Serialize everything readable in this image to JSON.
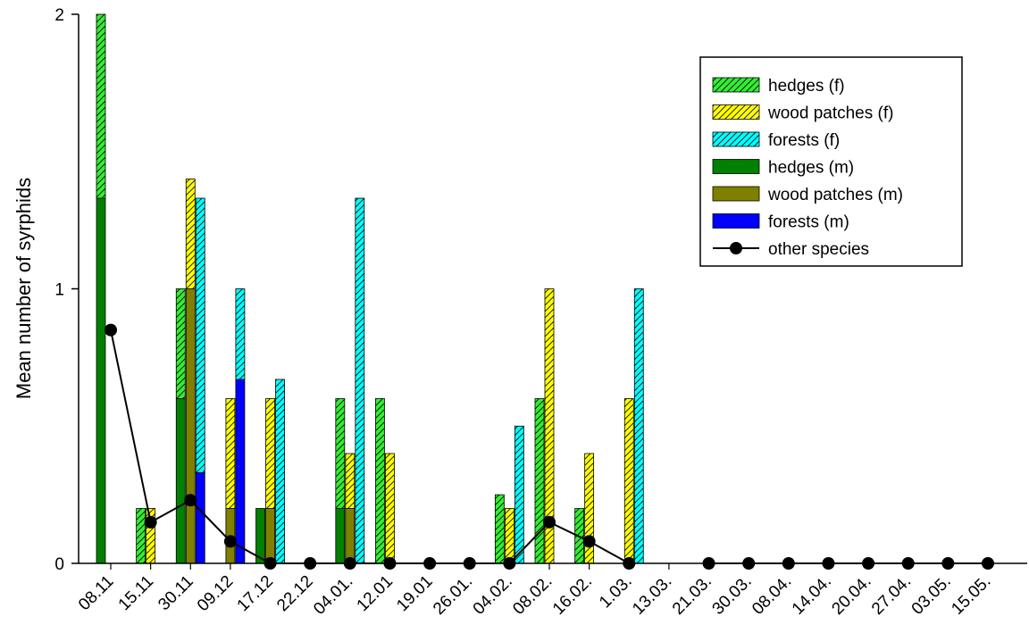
{
  "chart_data": {
    "type": "bar",
    "title": "",
    "xlabel": "",
    "ylabel": "Mean number of syrphids",
    "ylim": [
      0,
      2
    ],
    "yticks": [
      0,
      1,
      2
    ],
    "categories": [
      "08.11",
      "15.11",
      "30.11",
      "09.12",
      "17.12",
      "22.12",
      "04.01.",
      "12.01",
      "19.01",
      "26.01.",
      "04.02.",
      "08.02.",
      "16.02.",
      "1.03.",
      "13.03.",
      "21.03.",
      "30.03.",
      "08.04.",
      "14.04.",
      "20.04.",
      "27.04.",
      "03.05.",
      "15.05."
    ],
    "stacked_groups": [
      {
        "habitat": "hedges",
        "female_series": "hedges (f)",
        "male_series": "hedges (m)"
      },
      {
        "habitat": "wood patches",
        "female_series": "wood patches (f)",
        "male_series": "wood patches (m)"
      },
      {
        "habitat": "forests",
        "female_series": "forests (f)",
        "male_series": "forests (m)"
      }
    ],
    "series": [
      {
        "name": "hedges (f)",
        "kind": "bar",
        "color": "#33ee33",
        "hatch": true,
        "values": [
          0.67,
          0.2,
          0.4,
          0,
          0,
          0,
          0.4,
          0.6,
          0,
          0,
          0.25,
          0.6,
          0.2,
          0,
          0,
          0,
          0,
          0,
          0,
          0,
          0,
          0,
          0
        ]
      },
      {
        "name": "wood patches (f)",
        "kind": "bar",
        "color": "#ffff00",
        "hatch": true,
        "values": [
          0,
          0.2,
          0.4,
          0.4,
          0.4,
          0,
          0.2,
          0.4,
          0,
          0,
          0.2,
          1.0,
          0.4,
          0.6,
          0,
          0,
          0,
          0,
          0,
          0,
          0,
          0,
          0
        ]
      },
      {
        "name": "forests (f)",
        "kind": "bar",
        "color": "#00ffff",
        "hatch": true,
        "values": [
          0,
          0,
          1.0,
          0.33,
          0.67,
          0,
          1.33,
          0,
          0,
          0,
          0.5,
          0,
          0,
          1.0,
          0,
          0,
          0,
          0,
          0,
          0,
          0,
          0,
          0
        ]
      },
      {
        "name": "hedges (m)",
        "kind": "bar",
        "color": "#008000",
        "hatch": false,
        "values": [
          1.33,
          0,
          0.6,
          0,
          0.2,
          0,
          0.2,
          0,
          0,
          0,
          0,
          0,
          0,
          0,
          0,
          0,
          0,
          0,
          0,
          0,
          0,
          0,
          0
        ]
      },
      {
        "name": "wood patches (m)",
        "kind": "bar",
        "color": "#808000",
        "hatch": false,
        "values": [
          0,
          0,
          1.0,
          0.2,
          0.2,
          0,
          0.2,
          0,
          0,
          0,
          0,
          0,
          0,
          0,
          0,
          0,
          0,
          0,
          0,
          0,
          0,
          0,
          0
        ]
      },
      {
        "name": "forests (m)",
        "kind": "bar",
        "color": "#0000ff",
        "hatch": false,
        "values": [
          0,
          0,
          0.33,
          0.67,
          0,
          0,
          0,
          0,
          0,
          0,
          0,
          0,
          0,
          0,
          0,
          0,
          0,
          0,
          0,
          0,
          0,
          0,
          0
        ]
      },
      {
        "name": "other species",
        "kind": "line",
        "color": "#000000",
        "values": [
          0.85,
          0.15,
          0.23,
          0.08,
          0,
          0,
          0,
          0,
          0,
          0,
          0,
          0.15,
          0.08,
          0,
          null,
          0,
          0,
          0,
          0,
          0,
          0,
          0,
          0
        ]
      }
    ],
    "legend": {
      "position": "top-right",
      "entries": [
        "hedges (f)",
        "wood patches (f)",
        "forests (f)",
        "hedges (m)",
        "wood patches (m)",
        "forests (m)",
        "other species"
      ]
    },
    "grid": false
  }
}
